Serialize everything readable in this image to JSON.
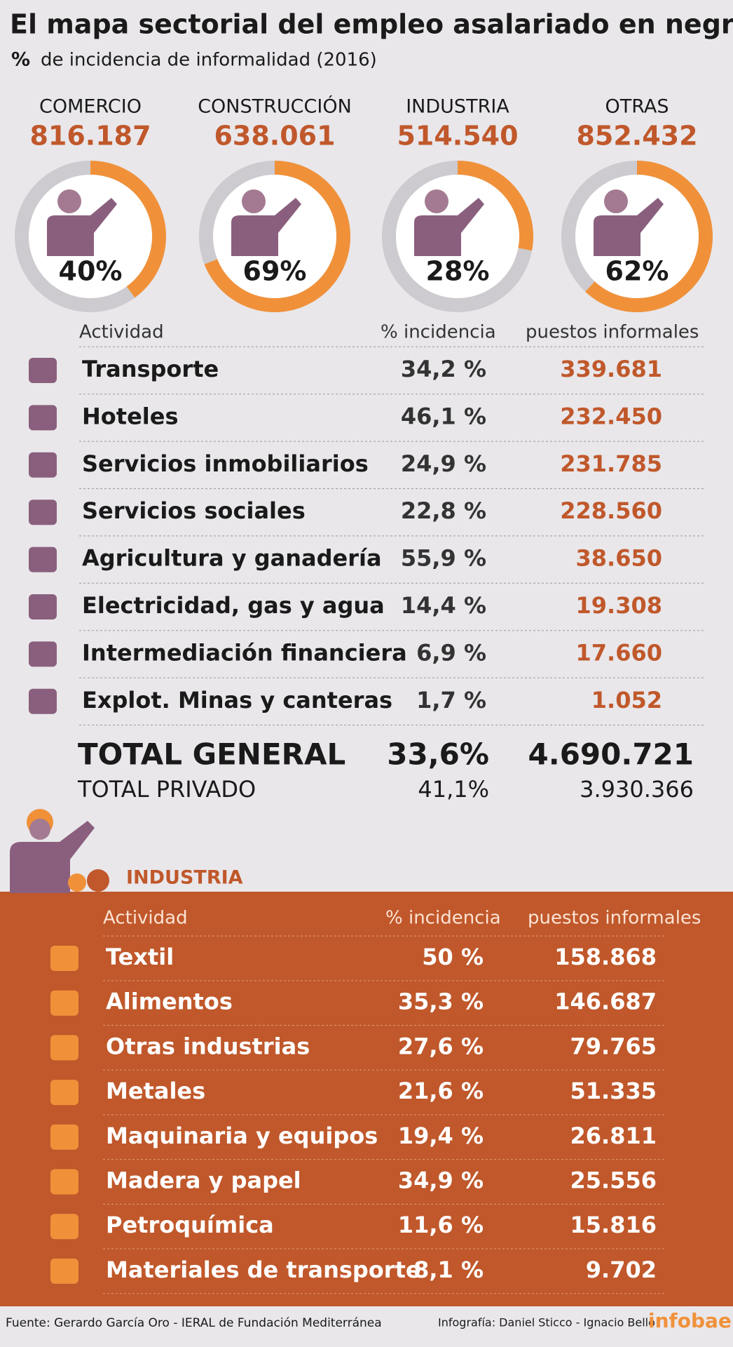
{
  "title": "El mapa sectorial del empleo asalariado en negro",
  "subtitle_symbol": "%",
  "subtitle": "de incidencia de informalidad (2016)",
  "sectors": [
    {
      "name": "COMERCIO",
      "value": "816.187",
      "percent": 40,
      "percent_label": "40%"
    },
    {
      "name": "CONSTRUCCIÓN",
      "value": "638.061",
      "percent": 69,
      "percent_label": "69%"
    },
    {
      "name": "INDUSTRIA",
      "value": "514.540",
      "percent": 28,
      "percent_label": "28%"
    },
    {
      "name": "OTRAS",
      "value": "852.432",
      "percent": 62,
      "percent_label": "62%"
    }
  ],
  "table": {
    "headers": [
      "Actividad",
      "% incidencia",
      "puestos informales"
    ],
    "rows": [
      [
        "Transporte",
        "34,2 %",
        "339.681"
      ],
      [
        "Hoteles",
        "46,1 %",
        "232.450"
      ],
      [
        "Servicios inmobiliarios",
        "24,9 %",
        "231.785"
      ],
      [
        "Servicios sociales",
        "22,8 %",
        "228.560"
      ],
      [
        "Agricultura y ganadería",
        "55,9 %",
        "38.650"
      ],
      [
        "Electricidad, gas y agua",
        "14,4 %",
        "19.308"
      ],
      [
        "Intermediación financiera",
        "6,9 %",
        "17.660"
      ],
      [
        "Explot. Minas y canteras",
        "1,7 %",
        "1.052"
      ]
    ]
  },
  "totals": [
    [
      "TOTAL GENERAL",
      "33,6%",
      "4.690.721"
    ],
    [
      "TOTAL PRIVADO",
      "41,1%",
      "3.930.366"
    ]
  ],
  "industry": {
    "title": "INDUSTRIA",
    "headers": [
      "Actividad",
      "% incidencia",
      "puestos informales"
    ],
    "rows": [
      [
        "Textil",
        "50 %",
        "158.868"
      ],
      [
        "Alimentos",
        "35,3 %",
        "146.687"
      ],
      [
        "Otras industrias",
        "27,6 %",
        "79.765"
      ],
      [
        "Metales",
        "21,6 %",
        "51.335"
      ],
      [
        "Maquinaria y equipos",
        "19,4 %",
        "26.811"
      ],
      [
        "Madera y papel",
        "34,9 %",
        "25.556"
      ],
      [
        "Petroquímica",
        "11,6 %",
        "15.816"
      ],
      [
        "Materiales de transporte",
        "8,1 %",
        "9.702"
      ]
    ]
  },
  "footer": {
    "source": "Fuente: Gerardo García Oro - IERAL de Fundación Mediterránea",
    "credits": "Infografía: Daniel Sticco - Ignacio Bello",
    "brand": "infobae"
  }
}
